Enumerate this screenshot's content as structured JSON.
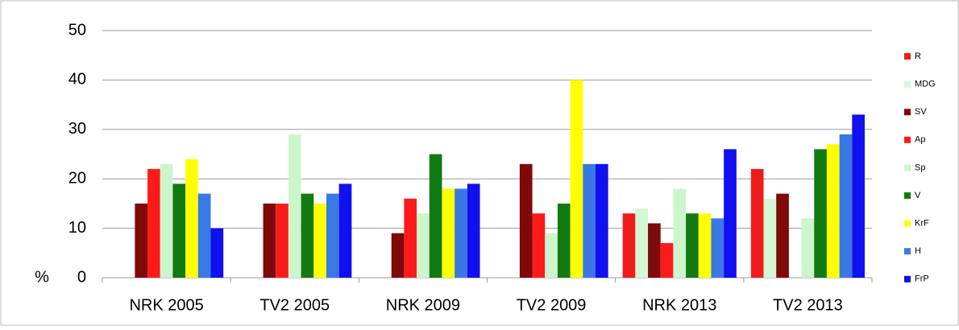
{
  "chart_data": {
    "type": "bar",
    "y_label": "%",
    "categories": [
      "NRK 2005",
      "TV2 2005",
      "NRK 2009",
      "TV2 2009",
      "NRK 2013",
      "TV2 2013"
    ],
    "series": [
      {
        "name": "R",
        "color": "#f01c1c",
        "values": [
          null,
          null,
          null,
          null,
          13,
          22
        ]
      },
      {
        "name": "MDG",
        "color": "#d4f7d4",
        "values": [
          null,
          null,
          null,
          null,
          14,
          16
        ]
      },
      {
        "name": "SV",
        "color": "#7f0a0a",
        "values": [
          15,
          15,
          9,
          23,
          11,
          17
        ]
      },
      {
        "name": "Ap",
        "color": "#ff1a1a",
        "values": [
          22,
          15,
          16,
          13,
          7,
          null
        ]
      },
      {
        "name": "Sp",
        "color": "#ccf5cc",
        "values": [
          23,
          29,
          13,
          9,
          18,
          12
        ]
      },
      {
        "name": "V",
        "color": "#127a12",
        "values": [
          19,
          17,
          25,
          15,
          13,
          26
        ]
      },
      {
        "name": "KrF",
        "color": "#ffff00",
        "values": [
          24,
          15,
          18,
          40,
          13,
          27
        ]
      },
      {
        "name": "H",
        "color": "#3a78e6",
        "values": [
          17,
          17,
          18,
          23,
          12,
          29
        ]
      },
      {
        "name": "FrP",
        "color": "#1010f0",
        "values": [
          10,
          19,
          19,
          23,
          26,
          33
        ]
      }
    ],
    "ylim": [
      0,
      50
    ],
    "yticks": [
      0,
      10,
      20,
      30,
      40,
      50
    ],
    "grid": true,
    "legend": "right"
  }
}
